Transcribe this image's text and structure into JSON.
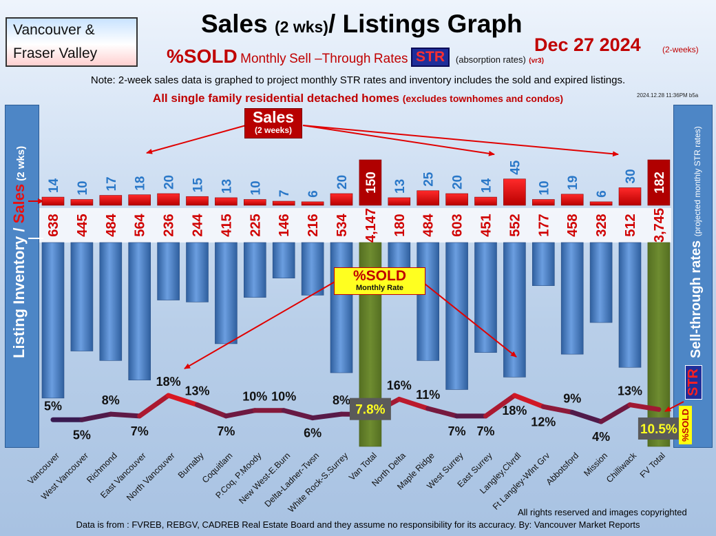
{
  "region": [
    "Vancouver &",
    "Fraser Valley"
  ],
  "title": {
    "main": "Sales ",
    "small": "(2 wks)",
    "rest": "/ Listings Graph"
  },
  "date": "Dec 27  2024",
  "date_note": "(2-weeks)",
  "subtitle": {
    "sold": "%SOLD",
    "monthly": "Monthly",
    "sell": "Sell",
    "through": "Through",
    "rates": "Rates",
    "str": "STR",
    "absorption": "(absorption rates)",
    "version": "(vr3)"
  },
  "note": "Note: 2-week sales data is graphed to project monthly STR rates and inventory includes the sold and expired listings.",
  "note2": {
    "main": "All single family residential detached homes ",
    "sub": "(excludes townhomes and condos)"
  },
  "stamp": "2024.12.28 11:36PM b5a",
  "left_axis": {
    "main": "Listing Inventory / ",
    "sales": "Sales",
    "sub": " (2  wks)"
  },
  "right_axis": {
    "main": "Sell-through rates ",
    "sub": "(projected monthly STR rates)"
  },
  "str_badge": "STR",
  "sold_badge": "%SOLD",
  "sales_callout": {
    "main": "Sales",
    "sub": "(2 weeks)"
  },
  "sold_callout": {
    "main": "%SOLD",
    "sub": "Monthly Rate"
  },
  "footer_rights": "All rights reserved and  images copyrighted",
  "footer_source": "Data is from : FVREB, REBGV, CADREB Real Estate Board and they assume no responsibility for its accuracy. By: Vancouver Market Reports",
  "colors": {
    "sales": "#e00000",
    "total_sales": "#b00000",
    "inventory": "#4a80c8",
    "total_inventory": "#6e8c30",
    "line_hot": "#ff1818",
    "line_cold": "#2a1a55"
  },
  "chart_data": {
    "type": "bar",
    "categories": [
      "Vancouver",
      "West Vancouver",
      "Richmond",
      "East Vancouver",
      "North Vancouver",
      "Burnaby",
      "Coquitlam",
      "P.Coq, P.Moody",
      "New West-E.Burn",
      "Delta-Ladner-Twsn",
      "White Rock-S.Surrey",
      "Van Total",
      "North Delta",
      "Maple Ridge",
      "West Surrey",
      "East Surrey",
      "Langley,Clvrdl",
      "Ft Langley-Wlnt Grv",
      "Abbotsford",
      "Mission",
      "Chilliwack",
      "FV Total"
    ],
    "totals": [
      false,
      false,
      false,
      false,
      false,
      false,
      false,
      false,
      false,
      false,
      false,
      true,
      false,
      false,
      false,
      false,
      false,
      false,
      false,
      false,
      false,
      true
    ],
    "sales": [
      14,
      10,
      17,
      18,
      20,
      15,
      13,
      10,
      7,
      6,
      20,
      150,
      13,
      25,
      20,
      14,
      45,
      10,
      19,
      6,
      30,
      182
    ],
    "sales_labels": [
      "14",
      "10",
      "17",
      "18",
      "20",
      "15",
      "13",
      "10",
      "7",
      "6",
      "20",
      "150",
      "13",
      "25",
      "20",
      "14",
      "45",
      "10",
      "19",
      "6",
      "30",
      "182"
    ],
    "inventory": [
      638,
      445,
      484,
      564,
      236,
      244,
      415,
      225,
      146,
      216,
      534,
      4147,
      180,
      484,
      603,
      451,
      552,
      177,
      458,
      328,
      512,
      3745
    ],
    "inventory_labels": [
      "638",
      "445",
      "484",
      "564",
      "236",
      "244",
      "415",
      "225",
      "146",
      "216",
      "534",
      "4,147",
      "180",
      "484",
      "603",
      "451",
      "552",
      "177",
      "458",
      "328",
      "512",
      "3,745"
    ],
    "sold_pct": [
      5,
      5,
      8,
      7,
      18,
      13,
      7,
      10,
      10,
      6,
      8,
      7.8,
      16,
      11,
      7,
      7,
      18,
      12,
      9,
      4,
      13,
      10.5
    ],
    "sold_labels": [
      "5%",
      "5%",
      "8%",
      "7%",
      "18%",
      "13%",
      "7%",
      "10%",
      "10%",
      "6%",
      "8%",
      "7.8%",
      "16%",
      "11%",
      "7%",
      "7%",
      "18%",
      "12%",
      "9%",
      "4%",
      "13%",
      "10.5%"
    ]
  }
}
